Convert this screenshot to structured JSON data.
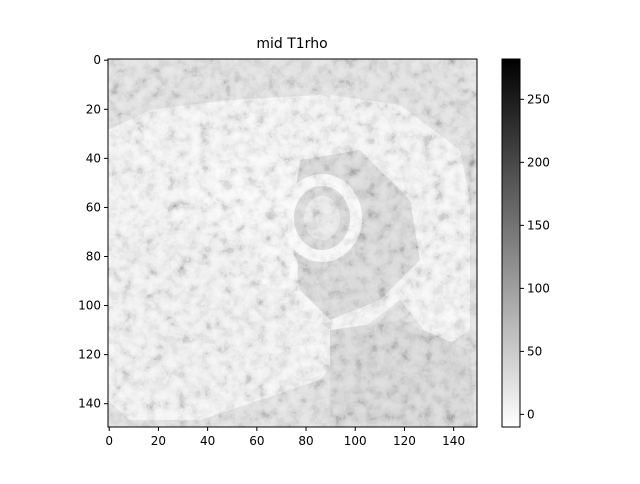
{
  "chart_data": {
    "type": "heatmap",
    "title": "mid T1rho",
    "xlabel": "",
    "ylabel": "",
    "xlim": [
      0,
      149
    ],
    "ylim": [
      149,
      0
    ],
    "x_ticks": [
      "0",
      "20",
      "40",
      "60",
      "80",
      "100",
      "120",
      "140"
    ],
    "y_ticks": [
      "0",
      "20",
      "40",
      "60",
      "80",
      "100",
      "120",
      "140"
    ],
    "colormap": "gray_r",
    "colorbar": {
      "range": [
        -10,
        282
      ],
      "ticks": [
        "0",
        "50",
        "100",
        "150",
        "200",
        "250"
      ]
    },
    "grid": false
  }
}
